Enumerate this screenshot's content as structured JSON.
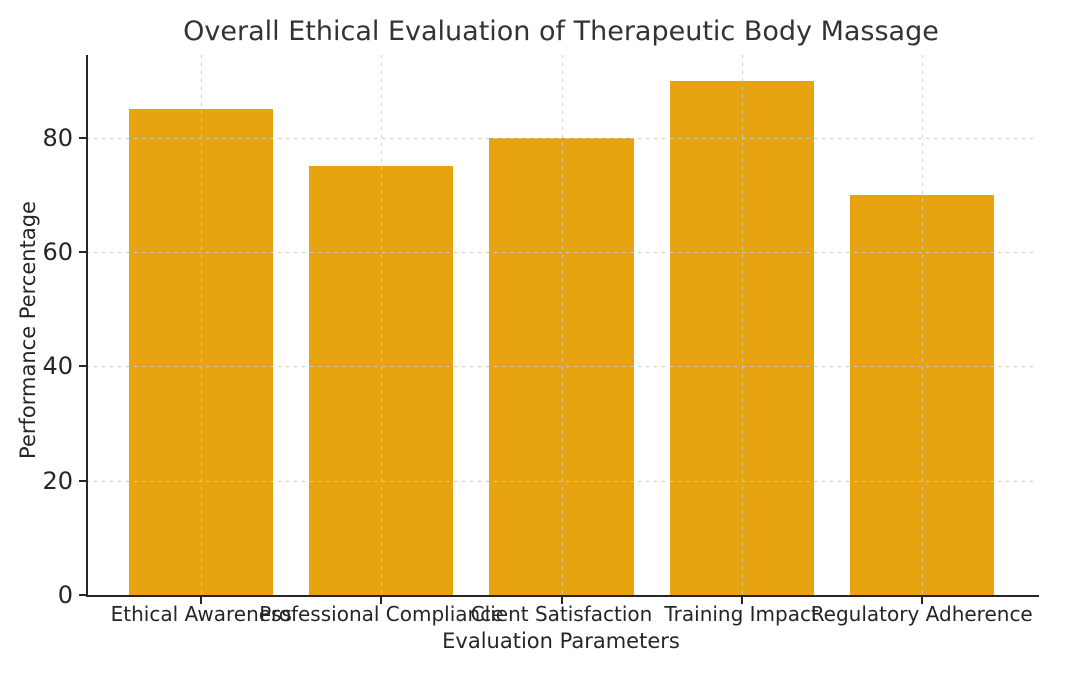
{
  "chart_data": {
    "type": "bar",
    "title": "Overall Ethical Evaluation of Therapeutic Body Massage",
    "xlabel": "Evaluation Parameters",
    "ylabel": "Performance Percentage",
    "categories": [
      "Ethical Awareness",
      "Professional Compliance",
      "Client Satisfaction",
      "Training Impact",
      "Regulatory Adherence"
    ],
    "values": [
      85,
      75,
      80,
      90,
      70
    ],
    "yticks": [
      0,
      20,
      40,
      60,
      80
    ],
    "ylim": [
      0,
      94.5
    ],
    "bar_color": "#E7A410",
    "grid": "dashed",
    "grid_color": "#cccccc",
    "axis_color": "#262626",
    "text_color": "#262626",
    "title_color": "#333333",
    "background": "#ffffff",
    "legend": "none"
  }
}
